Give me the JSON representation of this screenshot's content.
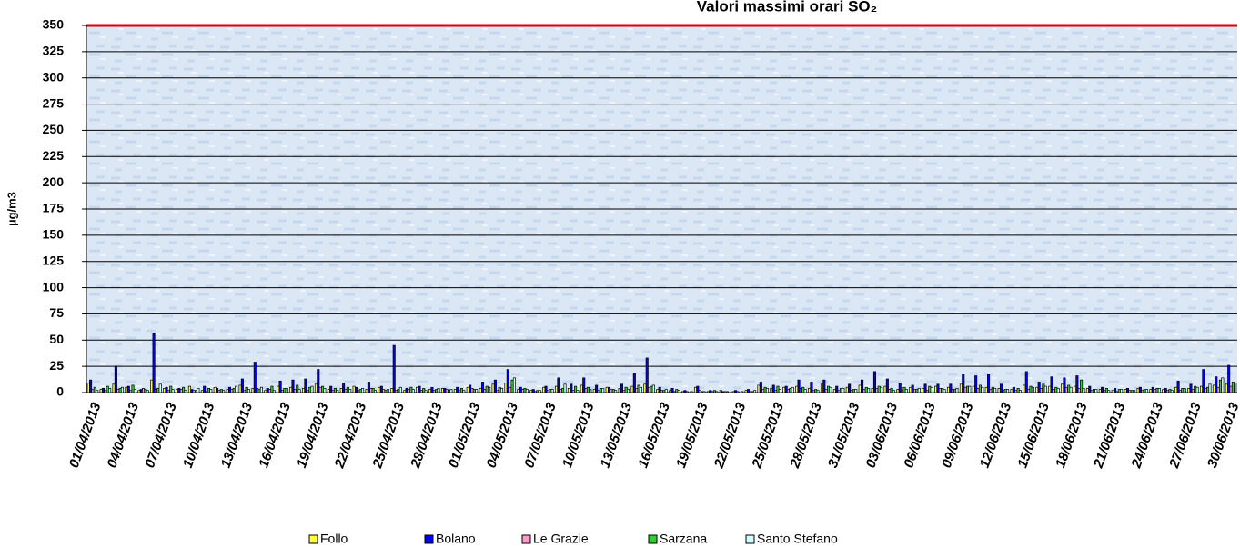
{
  "chart_data": {
    "type": "bar",
    "title": "Valori massimi orari SO₂",
    "y_label": "µg/m3",
    "categories": [
      "01/04/2013",
      null,
      null,
      "04/04/2013",
      null,
      null,
      "07/04/2013",
      null,
      null,
      "10/04/2013",
      null,
      null,
      "13/04/2013",
      null,
      null,
      "16/04/2013",
      null,
      null,
      "19/04/2013",
      null,
      null,
      "22/04/2013",
      null,
      null,
      "25/04/2013",
      null,
      null,
      "28/04/2013",
      null,
      null,
      "01/05/2013",
      null,
      null,
      "04/05/2013",
      null,
      null,
      "07/05/2013",
      null,
      null,
      "10/05/2013",
      null,
      null,
      "13/05/2013",
      null,
      null,
      "16/05/2013",
      null,
      null,
      "19/05/2013",
      null,
      null,
      "22/05/2013",
      null,
      null,
      "25/05/2013",
      null,
      null,
      "28/05/2013",
      null,
      null,
      "31/05/2013",
      null,
      null,
      "03/06/2013",
      null,
      null,
      "06/06/2013",
      null,
      null,
      "09/06/2013",
      null,
      null,
      "12/06/2013",
      null,
      null,
      "15/06/2013",
      null,
      null,
      "18/06/2013",
      null,
      null,
      "21/06/2013",
      null,
      null,
      "24/06/2013",
      null,
      null,
      "27/06/2013",
      null,
      null,
      "30/06/2013"
    ],
    "series": [
      {
        "name": "Follo",
        "color": "#ffff33",
        "values": [
          9,
          3,
          8,
          5,
          2,
          12,
          4,
          3,
          6,
          2,
          5,
          3,
          7,
          4,
          2,
          6,
          5,
          4,
          8,
          3,
          4,
          6,
          3,
          5,
          4,
          2,
          5,
          3,
          4,
          3,
          5,
          4,
          8,
          9,
          3,
          2,
          5,
          6,
          4,
          7,
          3,
          5,
          4,
          6,
          8,
          3,
          2,
          1,
          5,
          1,
          2,
          1,
          2,
          7,
          4,
          5,
          6,
          4,
          8,
          3,
          5,
          7,
          4,
          6,
          3,
          5,
          4,
          6,
          5,
          8,
          6,
          5,
          4,
          3,
          7,
          5,
          6,
          8,
          6,
          4,
          3,
          2,
          3,
          4,
          3,
          3,
          5,
          4,
          6,
          7,
          8
        ]
      },
      {
        "name": "Bolano",
        "color": "#0000ff",
        "values": [
          12,
          4,
          25,
          6,
          3,
          56,
          5,
          4,
          3,
          6,
          4,
          5,
          13,
          29,
          4,
          11,
          12,
          13,
          22,
          6,
          9,
          5,
          10,
          6,
          45,
          4,
          6,
          5,
          4,
          5,
          7,
          10,
          12,
          22,
          5,
          3,
          6,
          14,
          8,
          14,
          7,
          5,
          8,
          18,
          33,
          5,
          4,
          2,
          6,
          2,
          1,
          2,
          3,
          10,
          7,
          6,
          12,
          10,
          12,
          6,
          8,
          12,
          20,
          13,
          9,
          7,
          8,
          8,
          8,
          17,
          16,
          17,
          8,
          5,
          20,
          10,
          15,
          14,
          16,
          6,
          5,
          4,
          4,
          5,
          5,
          4,
          11,
          8,
          22,
          15,
          26
        ]
      },
      {
        "name": "Le Grazie",
        "color": "#ff99cc",
        "values": [
          3,
          2,
          3,
          2,
          4,
          3,
          2,
          3,
          2,
          1,
          2,
          3,
          2,
          4,
          3,
          2,
          3,
          2,
          5,
          2,
          3,
          2,
          4,
          3,
          2,
          3,
          2,
          2,
          3,
          2,
          4,
          3,
          2,
          5,
          3,
          1,
          2,
          3,
          2,
          4,
          2,
          3,
          2,
          4,
          5,
          2,
          1,
          1,
          2,
          1,
          1,
          1,
          1,
          3,
          2,
          3,
          4,
          2,
          3,
          2,
          2,
          3,
          4,
          3,
          2,
          3,
          2,
          4,
          3,
          5,
          4,
          3,
          2,
          2,
          3,
          4,
          3,
          5,
          4,
          2,
          2,
          1,
          2,
          2,
          3,
          2,
          2,
          3,
          4,
          5,
          6
        ]
      },
      {
        "name": "Sarzana",
        "color": "#33cc33",
        "values": [
          5,
          6,
          4,
          7,
          3,
          4,
          6,
          5,
          2,
          4,
          3,
          4,
          5,
          3,
          6,
          4,
          7,
          5,
          6,
          4,
          5,
          3,
          4,
          2,
          3,
          5,
          4,
          3,
          2,
          4,
          3,
          6,
          5,
          12,
          4,
          2,
          3,
          4,
          6,
          5,
          4,
          3,
          5,
          7,
          6,
          2,
          3,
          0,
          1,
          2,
          1,
          0,
          1,
          5,
          6,
          4,
          5,
          3,
          6,
          4,
          3,
          5,
          6,
          4,
          5,
          3,
          6,
          4,
          3,
          6,
          7,
          5,
          3,
          4,
          6,
          8,
          5,
          7,
          12,
          3,
          4,
          3,
          2,
          3,
          4,
          3,
          4,
          6,
          5,
          12,
          10
        ]
      },
      {
        "name": "Santo Stefano",
        "color": "#ccffff",
        "values": [
          2,
          4,
          5,
          3,
          2,
          8,
          3,
          2,
          4,
          3,
          2,
          6,
          3,
          5,
          2,
          4,
          3,
          6,
          4,
          2,
          3,
          4,
          2,
          3,
          5,
          3,
          2,
          4,
          3,
          2,
          3,
          5,
          4,
          14,
          3,
          2,
          3,
          8,
          2,
          3,
          4,
          2,
          3,
          5,
          7,
          3,
          2,
          1,
          1,
          1,
          0,
          1,
          2,
          4,
          3,
          5,
          3,
          2,
          5,
          4,
          3,
          4,
          5,
          2,
          3,
          4,
          5,
          3,
          4,
          6,
          5,
          4,
          3,
          2,
          5,
          6,
          4,
          5,
          4,
          3,
          2,
          3,
          2,
          3,
          4,
          2,
          4,
          5,
          8,
          14,
          9
        ]
      }
    ],
    "ylim": [
      0,
      350
    ],
    "yticks": [
      0,
      25,
      50,
      75,
      100,
      125,
      150,
      175,
      200,
      225,
      250,
      275,
      300,
      325,
      350
    ],
    "grid": true
  }
}
